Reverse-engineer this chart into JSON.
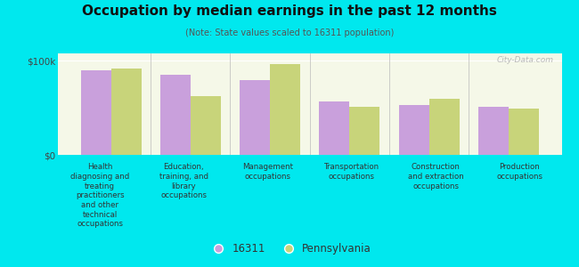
{
  "title": "Occupation by median earnings in the past 12 months",
  "subtitle": "(Note: State values scaled to 16311 population)",
  "categories": [
    "Health\ndiagnosing and\ntreating\npractitioners\nand other\ntechnical\noccupations",
    "Education,\ntraining, and\nlibrary\noccupations",
    "Management\noccupations",
    "Transportation\noccupations",
    "Construction\nand extraction\noccupations",
    "Production\noccupations"
  ],
  "values_16311": [
    90000,
    85000,
    80000,
    57000,
    53000,
    51000
  ],
  "values_pennsylvania": [
    92000,
    63000,
    97000,
    51000,
    60000,
    49000
  ],
  "color_16311": "#c9a0dc",
  "color_pennsylvania": "#c8d47a",
  "background_color": "#00e8ee",
  "plot_bg_top": "#f5f8e8",
  "plot_bg_bottom": "#e8f0d0",
  "ytick_labels": [
    "$0",
    "$100k"
  ],
  "ytick_values": [
    0,
    100000
  ],
  "ylim": [
    0,
    108000
  ],
  "legend_label_16311": "16311",
  "legend_label_pa": "Pennsylvania",
  "watermark": "City-Data.com"
}
